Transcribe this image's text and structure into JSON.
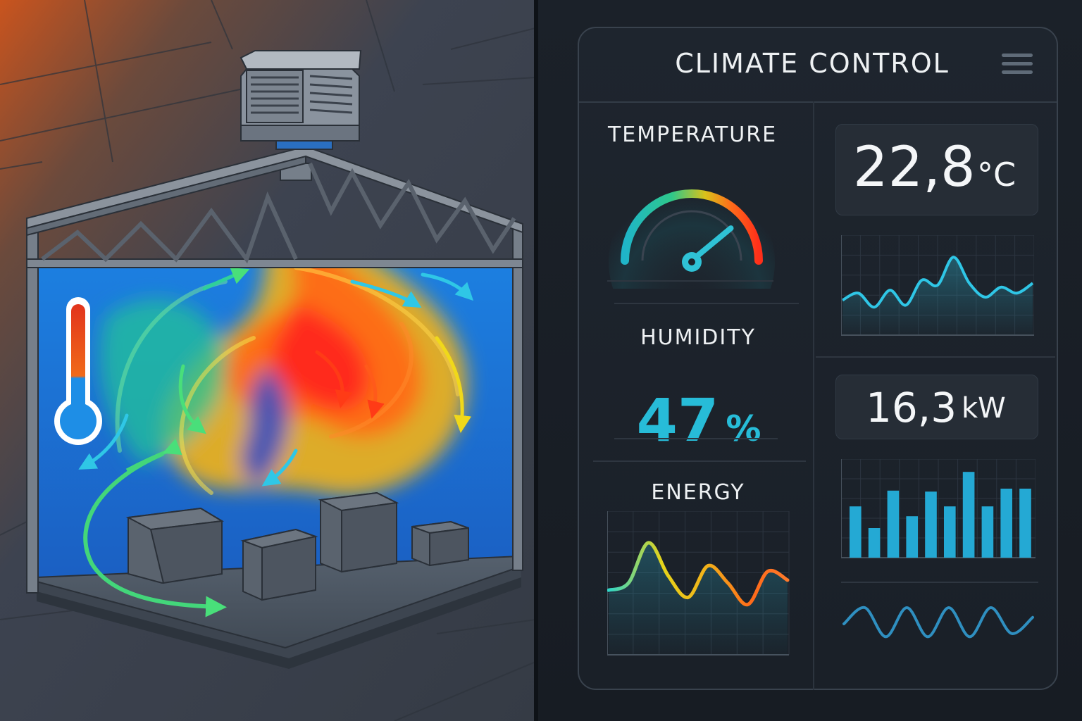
{
  "panel": {
    "title": "CLIMATE CONTROL",
    "menu_icon": "hamburger-menu-icon"
  },
  "temperature": {
    "label": "TEMPERATURE",
    "value": "22,8",
    "unit": "°C",
    "gauge_level": 0.78
  },
  "humidity": {
    "label": "HUMIDITY",
    "value": "47",
    "unit": "%"
  },
  "energy": {
    "label": "ENERGY",
    "value": "16,3",
    "unit": "kW"
  },
  "colors": {
    "accent": "#27bcd8",
    "panel_bg": "#1e252e",
    "card_bg": "#262d36",
    "hot": "#ff4a1c",
    "cold": "#1e6fd6"
  },
  "scene": {
    "icons": [
      "thermometer-icon",
      "hvac-unit-icon",
      "airflow-arrow-icon"
    ]
  },
  "chart_data": [
    {
      "type": "line",
      "series": [
        {
          "values": [
            0.35,
            0.42,
            0.28,
            0.45,
            0.3,
            0.55,
            0.5,
            0.78,
            0.52,
            0.38,
            0.48,
            0.42,
            0.52
          ]
        }
      ]
    },
    {
      "type": "bar",
      "values": [
        0.52,
        0.3,
        0.68,
        0.42,
        0.67,
        0.52,
        0.87,
        0.52,
        0.7,
        0.7
      ]
    },
    {
      "type": "line",
      "series": [
        {
          "values": [
            0.45,
            0.5,
            0.78,
            0.55,
            0.4,
            0.62,
            0.5,
            0.35,
            0.58,
            0.52
          ]
        }
      ]
    },
    {
      "type": "line",
      "series": [
        {
          "values": [
            0.5,
            0.75,
            0.3,
            0.75,
            0.3,
            0.75,
            0.3,
            0.75,
            0.35,
            0.6
          ]
        }
      ]
    }
  ]
}
